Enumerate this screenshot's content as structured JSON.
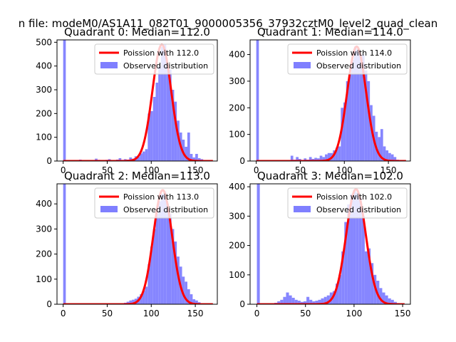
{
  "suptitle": "n file: modeM0/AS1A11_082T01_9000005356_37932cztM0_level2_quad_clean",
  "legend_labels": {
    "poisson_prefix": "Poission with",
    "observed": "Observed distribution"
  },
  "colors": {
    "hist": "#7f7fff",
    "poisson": "#ff0000",
    "axes": "#000000"
  },
  "chart_data": [
    {
      "type": "bar",
      "title": "Quadrant 0: Median=112.0",
      "median": 112.0,
      "xlim": [
        -7,
        175
      ],
      "ylim": [
        0,
        510
      ],
      "xticks": [
        0,
        50,
        100,
        150
      ],
      "yticks": [
        0,
        100,
        200,
        300,
        400,
        500
      ],
      "legend_location": "upper right",
      "series": [
        {
          "name": "Poission with 112.0",
          "type": "line",
          "mean": 112.0,
          "peak": 490,
          "sigma": 10.6,
          "x_range": [
            0,
            170
          ]
        },
        {
          "name": "Observed distribution",
          "type": "histogram",
          "bins": [
            [
              0,
              3,
              900
            ],
            [
              15,
              18,
              4
            ],
            [
              18,
              21,
              6
            ],
            [
              21,
              24,
              2
            ],
            [
              27,
              30,
              2
            ],
            [
              33,
              36,
              4
            ],
            [
              36,
              39,
              10
            ],
            [
              39,
              42,
              5
            ],
            [
              42,
              45,
              3
            ],
            [
              48,
              51,
              5
            ],
            [
              51,
              54,
              8
            ],
            [
              54,
              57,
              4
            ],
            [
              57,
              60,
              2
            ],
            [
              60,
              63,
              6
            ],
            [
              63,
              66,
              12
            ],
            [
              66,
              69,
              5
            ],
            [
              69,
              72,
              8
            ],
            [
              72,
              75,
              6
            ],
            [
              75,
              78,
              15
            ],
            [
              78,
              81,
              10
            ],
            [
              81,
              84,
              20
            ],
            [
              84,
              87,
              18
            ],
            [
              87,
              90,
              32
            ],
            [
              90,
              93,
              40
            ],
            [
              93,
              96,
              50
            ],
            [
              96,
              99,
              200
            ],
            [
              99,
              102,
              210
            ],
            [
              102,
              105,
              270
            ],
            [
              105,
              108,
              330
            ],
            [
              108,
              111,
              400
            ],
            [
              111,
              114,
              480
            ],
            [
              114,
              117,
              490
            ],
            [
              117,
              120,
              410
            ],
            [
              120,
              123,
              385
            ],
            [
              123,
              126,
              300
            ],
            [
              126,
              129,
              250
            ],
            [
              129,
              132,
              170
            ],
            [
              132,
              135,
              120
            ],
            [
              135,
              138,
              90
            ],
            [
              138,
              141,
              60
            ],
            [
              141,
              144,
              120
            ],
            [
              144,
              147,
              30
            ],
            [
              147,
              150,
              15
            ],
            [
              150,
              153,
              30
            ],
            [
              153,
              156,
              12
            ],
            [
              156,
              159,
              8
            ],
            [
              159,
              162,
              4
            ]
          ]
        }
      ]
    },
    {
      "type": "bar",
      "title": "Quadrant 1: Median=114.0",
      "median": 114.0,
      "xlim": [
        -7,
        175
      ],
      "ylim": [
        0,
        455
      ],
      "xticks": [
        0,
        50,
        100,
        150
      ],
      "yticks": [
        0,
        100,
        200,
        300,
        400
      ],
      "legend_location": "upper right",
      "series": [
        {
          "name": "Poission with 114.0",
          "type": "line",
          "mean": 114.0,
          "peak": 430,
          "sigma": 10.7,
          "x_range": [
            0,
            170
          ]
        },
        {
          "name": "Observed distribution",
          "type": "histogram",
          "bins": [
            [
              0,
              3,
              900
            ],
            [
              18,
              21,
              2
            ],
            [
              24,
              27,
              4
            ],
            [
              33,
              36,
              3
            ],
            [
              39,
              42,
              20
            ],
            [
              42,
              45,
              5
            ],
            [
              45,
              48,
              15
            ],
            [
              48,
              51,
              8
            ],
            [
              51,
              54,
              3
            ],
            [
              54,
              57,
              10
            ],
            [
              57,
              60,
              5
            ],
            [
              60,
              63,
              15
            ],
            [
              63,
              66,
              8
            ],
            [
              66,
              69,
              12
            ],
            [
              69,
              72,
              10
            ],
            [
              72,
              75,
              20
            ],
            [
              75,
              78,
              15
            ],
            [
              78,
              81,
              25
            ],
            [
              81,
              84,
              30
            ],
            [
              84,
              87,
              30
            ],
            [
              87,
              90,
              40
            ],
            [
              90,
              93,
              50
            ],
            [
              93,
              96,
              55
            ],
            [
              96,
              99,
              200
            ],
            [
              99,
              102,
              220
            ],
            [
              102,
              105,
              300
            ],
            [
              105,
              108,
              330
            ],
            [
              108,
              111,
              380
            ],
            [
              111,
              114,
              430
            ],
            [
              114,
              117,
              415
            ],
            [
              117,
              120,
              395
            ],
            [
              120,
              123,
              400
            ],
            [
              123,
              126,
              340
            ],
            [
              126,
              129,
              300
            ],
            [
              129,
              132,
              210
            ],
            [
              132,
              135,
              170
            ],
            [
              135,
              138,
              110
            ],
            [
              138,
              141,
              90
            ],
            [
              141,
              144,
              120
            ],
            [
              144,
              147,
              55
            ],
            [
              147,
              150,
              40
            ],
            [
              150,
              153,
              30
            ],
            [
              153,
              156,
              25
            ],
            [
              156,
              159,
              15
            ],
            [
              159,
              162,
              5
            ]
          ]
        }
      ]
    },
    {
      "type": "bar",
      "title": "Quadrant 2: Median=113.0",
      "median": 113.0,
      "xlim": [
        -7,
        175
      ],
      "ylim": [
        0,
        480
      ],
      "xticks": [
        0,
        50,
        100,
        150
      ],
      "yticks": [
        0,
        100,
        200,
        300,
        400
      ],
      "legend_location": "upper right",
      "series": [
        {
          "name": "Poission with 113.0",
          "type": "line",
          "mean": 113.0,
          "peak": 455,
          "sigma": 10.6,
          "x_range": [
            0,
            170
          ]
        },
        {
          "name": "Observed distribution",
          "type": "histogram",
          "bins": [
            [
              0,
              3,
              900
            ],
            [
              45,
              48,
              2
            ],
            [
              51,
              54,
              2
            ],
            [
              60,
              63,
              4
            ],
            [
              63,
              66,
              3
            ],
            [
              69,
              72,
              6
            ],
            [
              72,
              75,
              10
            ],
            [
              75,
              78,
              15
            ],
            [
              78,
              81,
              18
            ],
            [
              81,
              84,
              22
            ],
            [
              84,
              87,
              30
            ],
            [
              87,
              90,
              40
            ],
            [
              90,
              93,
              55
            ],
            [
              93,
              96,
              70
            ],
            [
              96,
              99,
              160
            ],
            [
              99,
              102,
              230
            ],
            [
              102,
              105,
              300
            ],
            [
              105,
              108,
              360
            ],
            [
              108,
              111,
              410
            ],
            [
              111,
              114,
              440
            ],
            [
              114,
              117,
              450
            ],
            [
              117,
              120,
              400
            ],
            [
              120,
              123,
              360
            ],
            [
              123,
              126,
              300
            ],
            [
              126,
              129,
              250
            ],
            [
              129,
              132,
              190
            ],
            [
              132,
              135,
              150
            ],
            [
              135,
              138,
              110
            ],
            [
              138,
              141,
              90
            ],
            [
              141,
              144,
              60
            ],
            [
              144,
              147,
              40
            ],
            [
              147,
              150,
              20
            ],
            [
              150,
              153,
              15
            ],
            [
              153,
              156,
              8
            ],
            [
              156,
              159,
              3
            ]
          ]
        }
      ]
    },
    {
      "type": "bar",
      "title": "Quadrant 3: Median=102.0",
      "median": 102.0,
      "xlim": [
        -7,
        158
      ],
      "ylim": [
        0,
        410
      ],
      "xticks": [
        0,
        50,
        100,
        150
      ],
      "yticks": [
        0,
        100,
        200,
        300,
        400
      ],
      "legend_location": "upper right",
      "series": [
        {
          "name": "Poission with 102.0",
          "type": "line",
          "mean": 102.0,
          "peak": 392,
          "sigma": 10.1,
          "x_range": [
            0,
            152
          ]
        },
        {
          "name": "Observed distribution",
          "type": "histogram",
          "bins": [
            [
              0,
              3,
              900
            ],
            [
              15,
              18,
              3
            ],
            [
              18,
              21,
              5
            ],
            [
              21,
              24,
              10
            ],
            [
              24,
              27,
              15
            ],
            [
              27,
              30,
              25
            ],
            [
              30,
              33,
              40
            ],
            [
              33,
              36,
              30
            ],
            [
              36,
              39,
              22
            ],
            [
              39,
              42,
              15
            ],
            [
              42,
              45,
              12
            ],
            [
              45,
              48,
              8
            ],
            [
              48,
              51,
              10
            ],
            [
              51,
              54,
              25
            ],
            [
              54,
              57,
              15
            ],
            [
              57,
              60,
              10
            ],
            [
              60,
              63,
              12
            ],
            [
              63,
              66,
              15
            ],
            [
              66,
              69,
              20
            ],
            [
              69,
              72,
              25
            ],
            [
              72,
              75,
              30
            ],
            [
              75,
              78,
              40
            ],
            [
              78,
              81,
              45
            ],
            [
              81,
              84,
              70
            ],
            [
              84,
              87,
              100
            ],
            [
              87,
              90,
              180
            ],
            [
              90,
              93,
              280
            ],
            [
              93,
              96,
              340
            ],
            [
              96,
              99,
              375
            ],
            [
              99,
              102,
              390
            ],
            [
              102,
              105,
              380
            ],
            [
              105,
              108,
              360
            ],
            [
              108,
              111,
              300
            ],
            [
              111,
              114,
              180
            ],
            [
              114,
              117,
              190
            ],
            [
              117,
              120,
              140
            ],
            [
              120,
              123,
              100
            ],
            [
              123,
              126,
              80
            ],
            [
              126,
              129,
              55
            ],
            [
              129,
              132,
              40
            ],
            [
              132,
              135,
              30
            ],
            [
              135,
              138,
              20
            ],
            [
              138,
              141,
              15
            ],
            [
              141,
              144,
              8
            ],
            [
              144,
              147,
              4
            ]
          ]
        }
      ]
    }
  ]
}
